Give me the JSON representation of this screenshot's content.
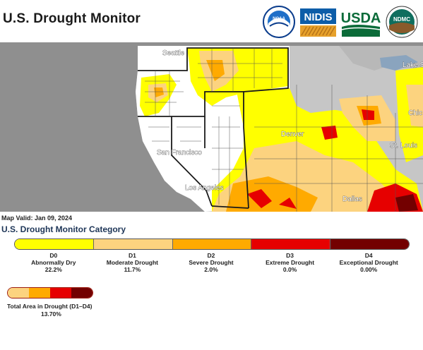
{
  "title": "U.S. Drought Monitor",
  "logos": {
    "noaa": "NOAA",
    "nidis": "NIDIS",
    "usda": "USDA",
    "ndmc": "NDMC"
  },
  "map": {
    "cities": {
      "seattle": "Seattle",
      "san_francisco": "San Francisco",
      "los_angeles": "Los Angeles",
      "denver": "Denver",
      "st_louis": "St. Louis",
      "dallas": "Dallas",
      "chicago": "Chic",
      "lake_superior": "Lake Supe"
    }
  },
  "map_valid": "Map Valid: Jan 09, 2024",
  "category_title": "U.S. Drought Monitor Category",
  "legend": [
    {
      "code": "D0",
      "name": "Abnormally Dry",
      "percent": "22.2%",
      "color": "#ffff00"
    },
    {
      "code": "D1",
      "name": "Moderate Drought",
      "percent": "11.7%",
      "color": "#fcd37f"
    },
    {
      "code": "D2",
      "name": "Severe Drought",
      "percent": "2.0%",
      "color": "#ffaa00"
    },
    {
      "code": "D3",
      "name": "Extreme Drought",
      "percent": "0.0%",
      "color": "#e60000"
    },
    {
      "code": "D4",
      "name": "Exceptional Drought",
      "percent": "0.00%",
      "color": "#730000"
    }
  ],
  "total": {
    "label": "Total Area in Drought (D1–D4)",
    "value": "13.70%"
  }
}
